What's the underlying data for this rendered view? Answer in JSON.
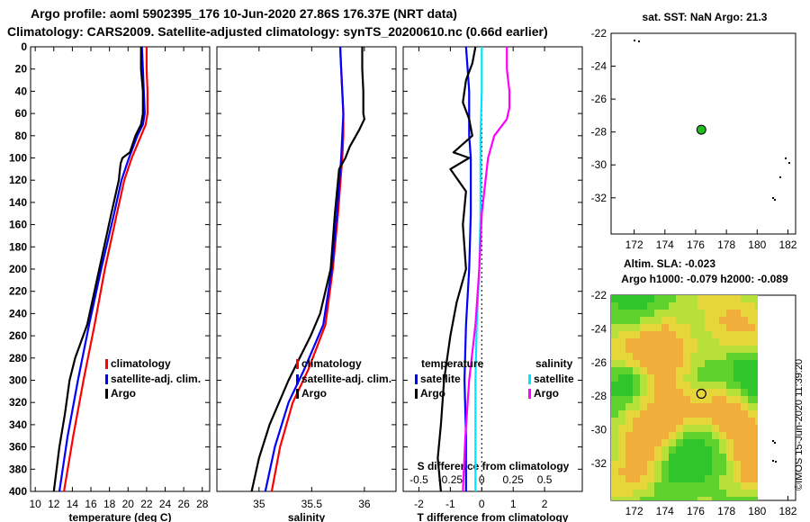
{
  "titles": {
    "line1": "Argo profile: aoml 5902395_176 10-Jun-2020 27.86S 176.37E (NRT data)",
    "line2": "Climatology: CARS2009. Satellite-adjusted climatology: synTS_20200610.nc (0.66d earlier)"
  },
  "colors": {
    "climatology": "#ff0000",
    "satellite": "#0000ff",
    "argo": "#000000",
    "sat_salinity": "#00e5ff",
    "clim_salinity": "#ff00ff"
  },
  "chart_data": [
    {
      "type": "line",
      "id": "temperature",
      "xlabel": "temperature (deg C)",
      "xlim": [
        9.5,
        28.8
      ],
      "xticks": [
        10,
        12,
        14,
        16,
        18,
        20,
        22,
        24,
        26,
        28
      ],
      "ylim": [
        400,
        0
      ],
      "yticks": [
        0,
        20,
        40,
        60,
        80,
        100,
        120,
        140,
        160,
        180,
        200,
        220,
        240,
        260,
        280,
        300,
        320,
        340,
        360,
        380,
        400
      ],
      "legend": [
        "climatology",
        "satellite-adj. clim.",
        "Argo"
      ],
      "series": [
        {
          "name": "climatology",
          "color": "#ff0000",
          "depth": [
            0,
            20,
            40,
            60,
            70,
            80,
            100,
            120,
            150,
            200,
            250,
            300,
            350,
            400
          ],
          "values": [
            22.0,
            22.0,
            22.1,
            22.1,
            21.9,
            21.4,
            20.4,
            19.6,
            18.8,
            17.5,
            16.4,
            15.2,
            14.1,
            13.1
          ]
        },
        {
          "name": "satellite-adj. clim.",
          "color": "#0000ff",
          "depth": [
            0,
            20,
            40,
            60,
            70,
            80,
            100,
            120,
            150,
            200,
            250,
            300,
            350,
            400
          ],
          "values": [
            21.5,
            21.6,
            21.7,
            21.8,
            21.6,
            21.0,
            20.1,
            19.3,
            18.5,
            17.1,
            15.8,
            14.6,
            13.5,
            12.6
          ]
        },
        {
          "name": "Argo",
          "color": "#000000",
          "depth": [
            0,
            20,
            40,
            60,
            70,
            80,
            95,
            100,
            105,
            120,
            150,
            200,
            250,
            280,
            300,
            330,
            360,
            380,
            400
          ],
          "values": [
            21.4,
            21.4,
            21.6,
            21.6,
            21.4,
            20.8,
            20.2,
            19.4,
            19.2,
            19.0,
            18.2,
            16.9,
            15.6,
            14.3,
            13.7,
            13.2,
            12.6,
            12.3,
            12.0
          ]
        }
      ]
    },
    {
      "type": "line",
      "id": "salinity",
      "xlabel": "salinity",
      "xlim": [
        34.6,
        36.3
      ],
      "xticks": [
        35,
        35.5,
        36
      ],
      "xticklabels": [
        "35",
        "35.5",
        "36"
      ],
      "ylim": [
        400,
        0
      ],
      "legend": [
        "climatology",
        "satellite-adj. clim.",
        "Argo"
      ],
      "series": [
        {
          "name": "climatology",
          "color": "#ff0000",
          "depth": [
            0,
            20,
            40,
            60,
            80,
            100,
            150,
            200,
            250,
            290,
            320,
            360,
            400
          ],
          "values": [
            35.77,
            35.78,
            35.79,
            35.8,
            35.8,
            35.79,
            35.75,
            35.7,
            35.63,
            35.47,
            35.32,
            35.2,
            35.12
          ]
        },
        {
          "name": "satellite-adj. clim.",
          "color": "#0000ff",
          "depth": [
            0,
            20,
            40,
            60,
            80,
            100,
            150,
            200,
            250,
            290,
            320,
            360,
            400
          ],
          "values": [
            35.77,
            35.78,
            35.79,
            35.8,
            35.79,
            35.78,
            35.74,
            35.69,
            35.61,
            35.43,
            35.28,
            35.15,
            35.06
          ]
        },
        {
          "name": "Argo",
          "color": "#000000",
          "depth": [
            0,
            20,
            40,
            60,
            65,
            75,
            90,
            100,
            110,
            150,
            200,
            240,
            260,
            300,
            340,
            370,
            400
          ],
          "values": [
            35.98,
            35.98,
            35.99,
            35.99,
            36.0,
            35.95,
            35.86,
            35.82,
            35.76,
            35.72,
            35.68,
            35.58,
            35.49,
            35.28,
            35.1,
            35.0,
            34.93
          ]
        }
      ]
    },
    {
      "type": "line",
      "id": "differences",
      "xlabel": "T difference from climatology",
      "top_axis_label": "S difference from climatology",
      "xlim": [
        -2.5,
        3.2
      ],
      "xticks": [
        -2,
        -1,
        0,
        1,
        2
      ],
      "xticklabels": [
        "-2",
        "-1",
        "0",
        "1",
        "2"
      ],
      "top_axis": {
        "xlim": [
          -0.625,
          0.8
        ],
        "xticks": [
          -0.5,
          -0.25,
          0,
          0.25,
          0.5
        ],
        "xticklabels": [
          "-0.5",
          "-0.25",
          "0",
          "0.25",
          "0.5"
        ]
      },
      "ylim": [
        400,
        0
      ],
      "legend_temperature": {
        "title": "temperature",
        "items": [
          "satellite",
          "Argo"
        ]
      },
      "legend_salinity": {
        "title": "salinity",
        "items": [
          "satellite",
          "Argo"
        ]
      },
      "series": [
        {
          "name": "T satellite",
          "color": "#0000ff",
          "axis": "T",
          "depth": [
            0,
            20,
            40,
            80,
            100,
            150,
            200,
            250,
            300,
            350,
            400
          ],
          "values": [
            -0.5,
            -0.45,
            -0.4,
            -0.4,
            -0.35,
            -0.35,
            -0.4,
            -0.5,
            -0.55,
            -0.5,
            -0.5
          ]
        },
        {
          "name": "T Argo",
          "color": "#000000",
          "axis": "T",
          "depth": [
            0,
            15,
            30,
            50,
            65,
            80,
            95,
            100,
            110,
            130,
            160,
            200,
            230,
            260,
            300,
            340,
            370,
            400
          ],
          "values": [
            -0.2,
            -0.3,
            -0.5,
            -0.6,
            -0.4,
            -0.3,
            -0.9,
            -0.4,
            -1.0,
            -0.5,
            -0.6,
            -0.5,
            -0.8,
            -1.0,
            -1.2,
            -1.3,
            -1.4,
            -1.3
          ]
        },
        {
          "name": "S satellite",
          "color": "#00e5ff",
          "axis": "S",
          "depth": [
            0,
            20,
            40,
            80,
            100,
            150,
            200,
            250,
            300,
            350,
            400
          ],
          "values": [
            0.0,
            0.0,
            0.0,
            -0.01,
            -0.01,
            -0.01,
            -0.02,
            -0.04,
            -0.05,
            -0.05,
            -0.05
          ]
        },
        {
          "name": "S Argo",
          "color": "#ff00ff",
          "axis": "S",
          "depth": [
            0,
            20,
            40,
            55,
            65,
            80,
            100,
            150,
            200,
            250,
            300,
            350,
            400
          ],
          "values": [
            0.2,
            0.2,
            0.22,
            0.22,
            0.2,
            0.1,
            0.05,
            0.0,
            -0.02,
            -0.05,
            -0.1,
            -0.13,
            -0.15
          ]
        }
      ]
    },
    {
      "type": "scatter",
      "id": "sst_map",
      "title": "sat. SST: NaN Argo: 21.3",
      "xlim": [
        170.5,
        182.5
      ],
      "ylim": [
        -34.2,
        -22
      ],
      "xticks": [
        172,
        174,
        176,
        178,
        180,
        182
      ],
      "yticks": [
        -22,
        -24,
        -26,
        -28,
        -30,
        -32
      ],
      "point": {
        "lon": 176.37,
        "lat": -27.86,
        "color": "#22bb22"
      },
      "footer": "Altim. SLA: -0.023"
    },
    {
      "type": "heatmap",
      "id": "sla_map",
      "title": "Argo h1000: -0.079 h2000: -0.089",
      "xlim": [
        170.5,
        182.5
      ],
      "ylim": [
        -34.2,
        -22
      ],
      "xticks": [
        172,
        174,
        176,
        178,
        180,
        182
      ],
      "yticks": [
        -22,
        -24,
        -26,
        -28,
        -30,
        -32
      ],
      "point": {
        "lon": 176.37,
        "lat": -27.86
      }
    }
  ],
  "credit": "©IMOS 15-Jun-2020 11:39:20"
}
